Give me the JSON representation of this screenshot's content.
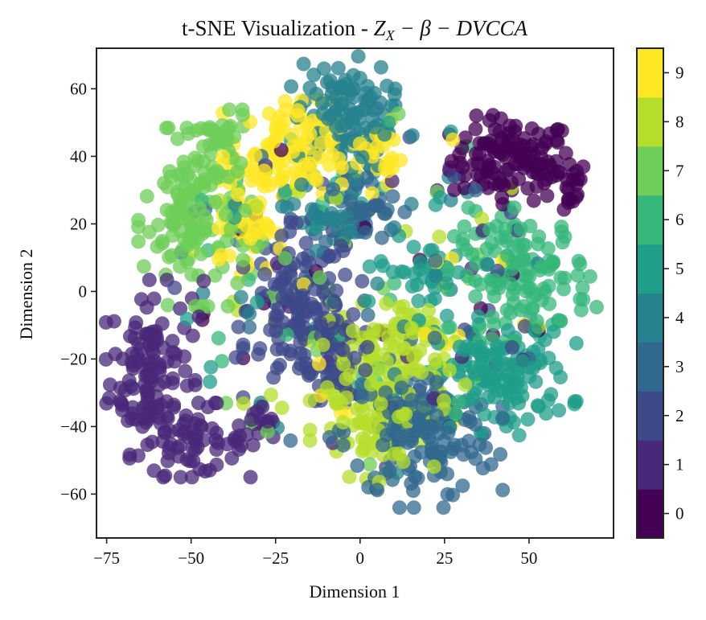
{
  "chart_data": {
    "type": "scatter",
    "title": "t-SNE Visualization - ",
    "title_math": "Z",
    "title_math_sub": "X",
    "title_math_rest": " − β − DVCCA",
    "xlabel": "Dimension 1",
    "ylabel": "Dimension 2",
    "xlim": [
      -78,
      75
    ],
    "ylim": [
      -73,
      72
    ],
    "xticks": [
      -75,
      -50,
      -25,
      0,
      25,
      50
    ],
    "xtick_labels": [
      "−75",
      "−50",
      "−25",
      "0",
      "25",
      "50"
    ],
    "yticks": [
      -60,
      -40,
      -20,
      0,
      20,
      40,
      60
    ],
    "ytick_labels": [
      "−60",
      "−40",
      "−20",
      "0",
      "20",
      "40",
      "60"
    ],
    "marker_alpha": 0.75,
    "colorbar": {
      "ticks": [
        0,
        1,
        2,
        3,
        4,
        5,
        6,
        7,
        8,
        9
      ],
      "tick_labels": [
        "0",
        "1",
        "2",
        "3",
        "4",
        "5",
        "6",
        "7",
        "8",
        "9"
      ],
      "colors": [
        "#440154",
        "#482878",
        "#3e4989",
        "#31688e",
        "#26828e",
        "#1f9e89",
        "#35b779",
        "#6ece58",
        "#b5de2b",
        "#fde725"
      ]
    },
    "clusters": [
      {
        "label": 0,
        "center": [
          45,
          39
        ],
        "spread": [
          9,
          6
        ],
        "count": 120
      },
      {
        "label": 0,
        "center": [
          60,
          31
        ],
        "spread": [
          4,
          4
        ],
        "count": 20
      },
      {
        "label": 1,
        "center": [
          -62,
          -23
        ],
        "spread": [
          6,
          12
        ],
        "count": 120
      },
      {
        "label": 1,
        "center": [
          -50,
          -44
        ],
        "spread": [
          8,
          5
        ],
        "count": 60
      },
      {
        "label": 1,
        "center": [
          -30,
          -42
        ],
        "spread": [
          4,
          4
        ],
        "count": 20
      },
      {
        "label": 2,
        "center": [
          -17,
          -5
        ],
        "spread": [
          8,
          12
        ],
        "count": 140
      },
      {
        "label": 2,
        "center": [
          -5,
          -20
        ],
        "spread": [
          5,
          6
        ],
        "count": 40
      },
      {
        "label": 3,
        "center": [
          18,
          -42
        ],
        "spread": [
          11,
          10
        ],
        "count": 150
      },
      {
        "label": 3,
        "center": [
          0,
          23
        ],
        "spread": [
          6,
          5
        ],
        "count": 40
      },
      {
        "label": 4,
        "center": [
          -5,
          52
        ],
        "spread": [
          7,
          8
        ],
        "count": 110
      },
      {
        "label": 4,
        "center": [
          -10,
          23
        ],
        "spread": [
          6,
          5
        ],
        "count": 30
      },
      {
        "label": 5,
        "center": [
          42,
          -25
        ],
        "spread": [
          10,
          8
        ],
        "count": 130
      },
      {
        "label": 5,
        "center": [
          20,
          6
        ],
        "spread": [
          6,
          4
        ],
        "count": 30
      },
      {
        "label": 6,
        "center": [
          48,
          5
        ],
        "spread": [
          10,
          9
        ],
        "count": 130
      },
      {
        "label": 7,
        "center": [
          -48,
          22
        ],
        "spread": [
          8,
          12
        ],
        "count": 140
      },
      {
        "label": 7,
        "center": [
          -43,
          45
        ],
        "spread": [
          5,
          4
        ],
        "count": 30
      },
      {
        "label": 8,
        "center": [
          5,
          -30
        ],
        "spread": [
          9,
          12
        ],
        "count": 140
      },
      {
        "label": 8,
        "center": [
          15,
          -12
        ],
        "spread": [
          6,
          5
        ],
        "count": 40
      },
      {
        "label": 9,
        "center": [
          -23,
          40
        ],
        "spread": [
          8,
          8
        ],
        "count": 110
      },
      {
        "label": 9,
        "center": [
          -33,
          20
        ],
        "spread": [
          4,
          7
        ],
        "count": 40
      },
      {
        "label": 9,
        "center": [
          5,
          40
        ],
        "spread": [
          4,
          5
        ],
        "count": 25
      }
    ]
  }
}
